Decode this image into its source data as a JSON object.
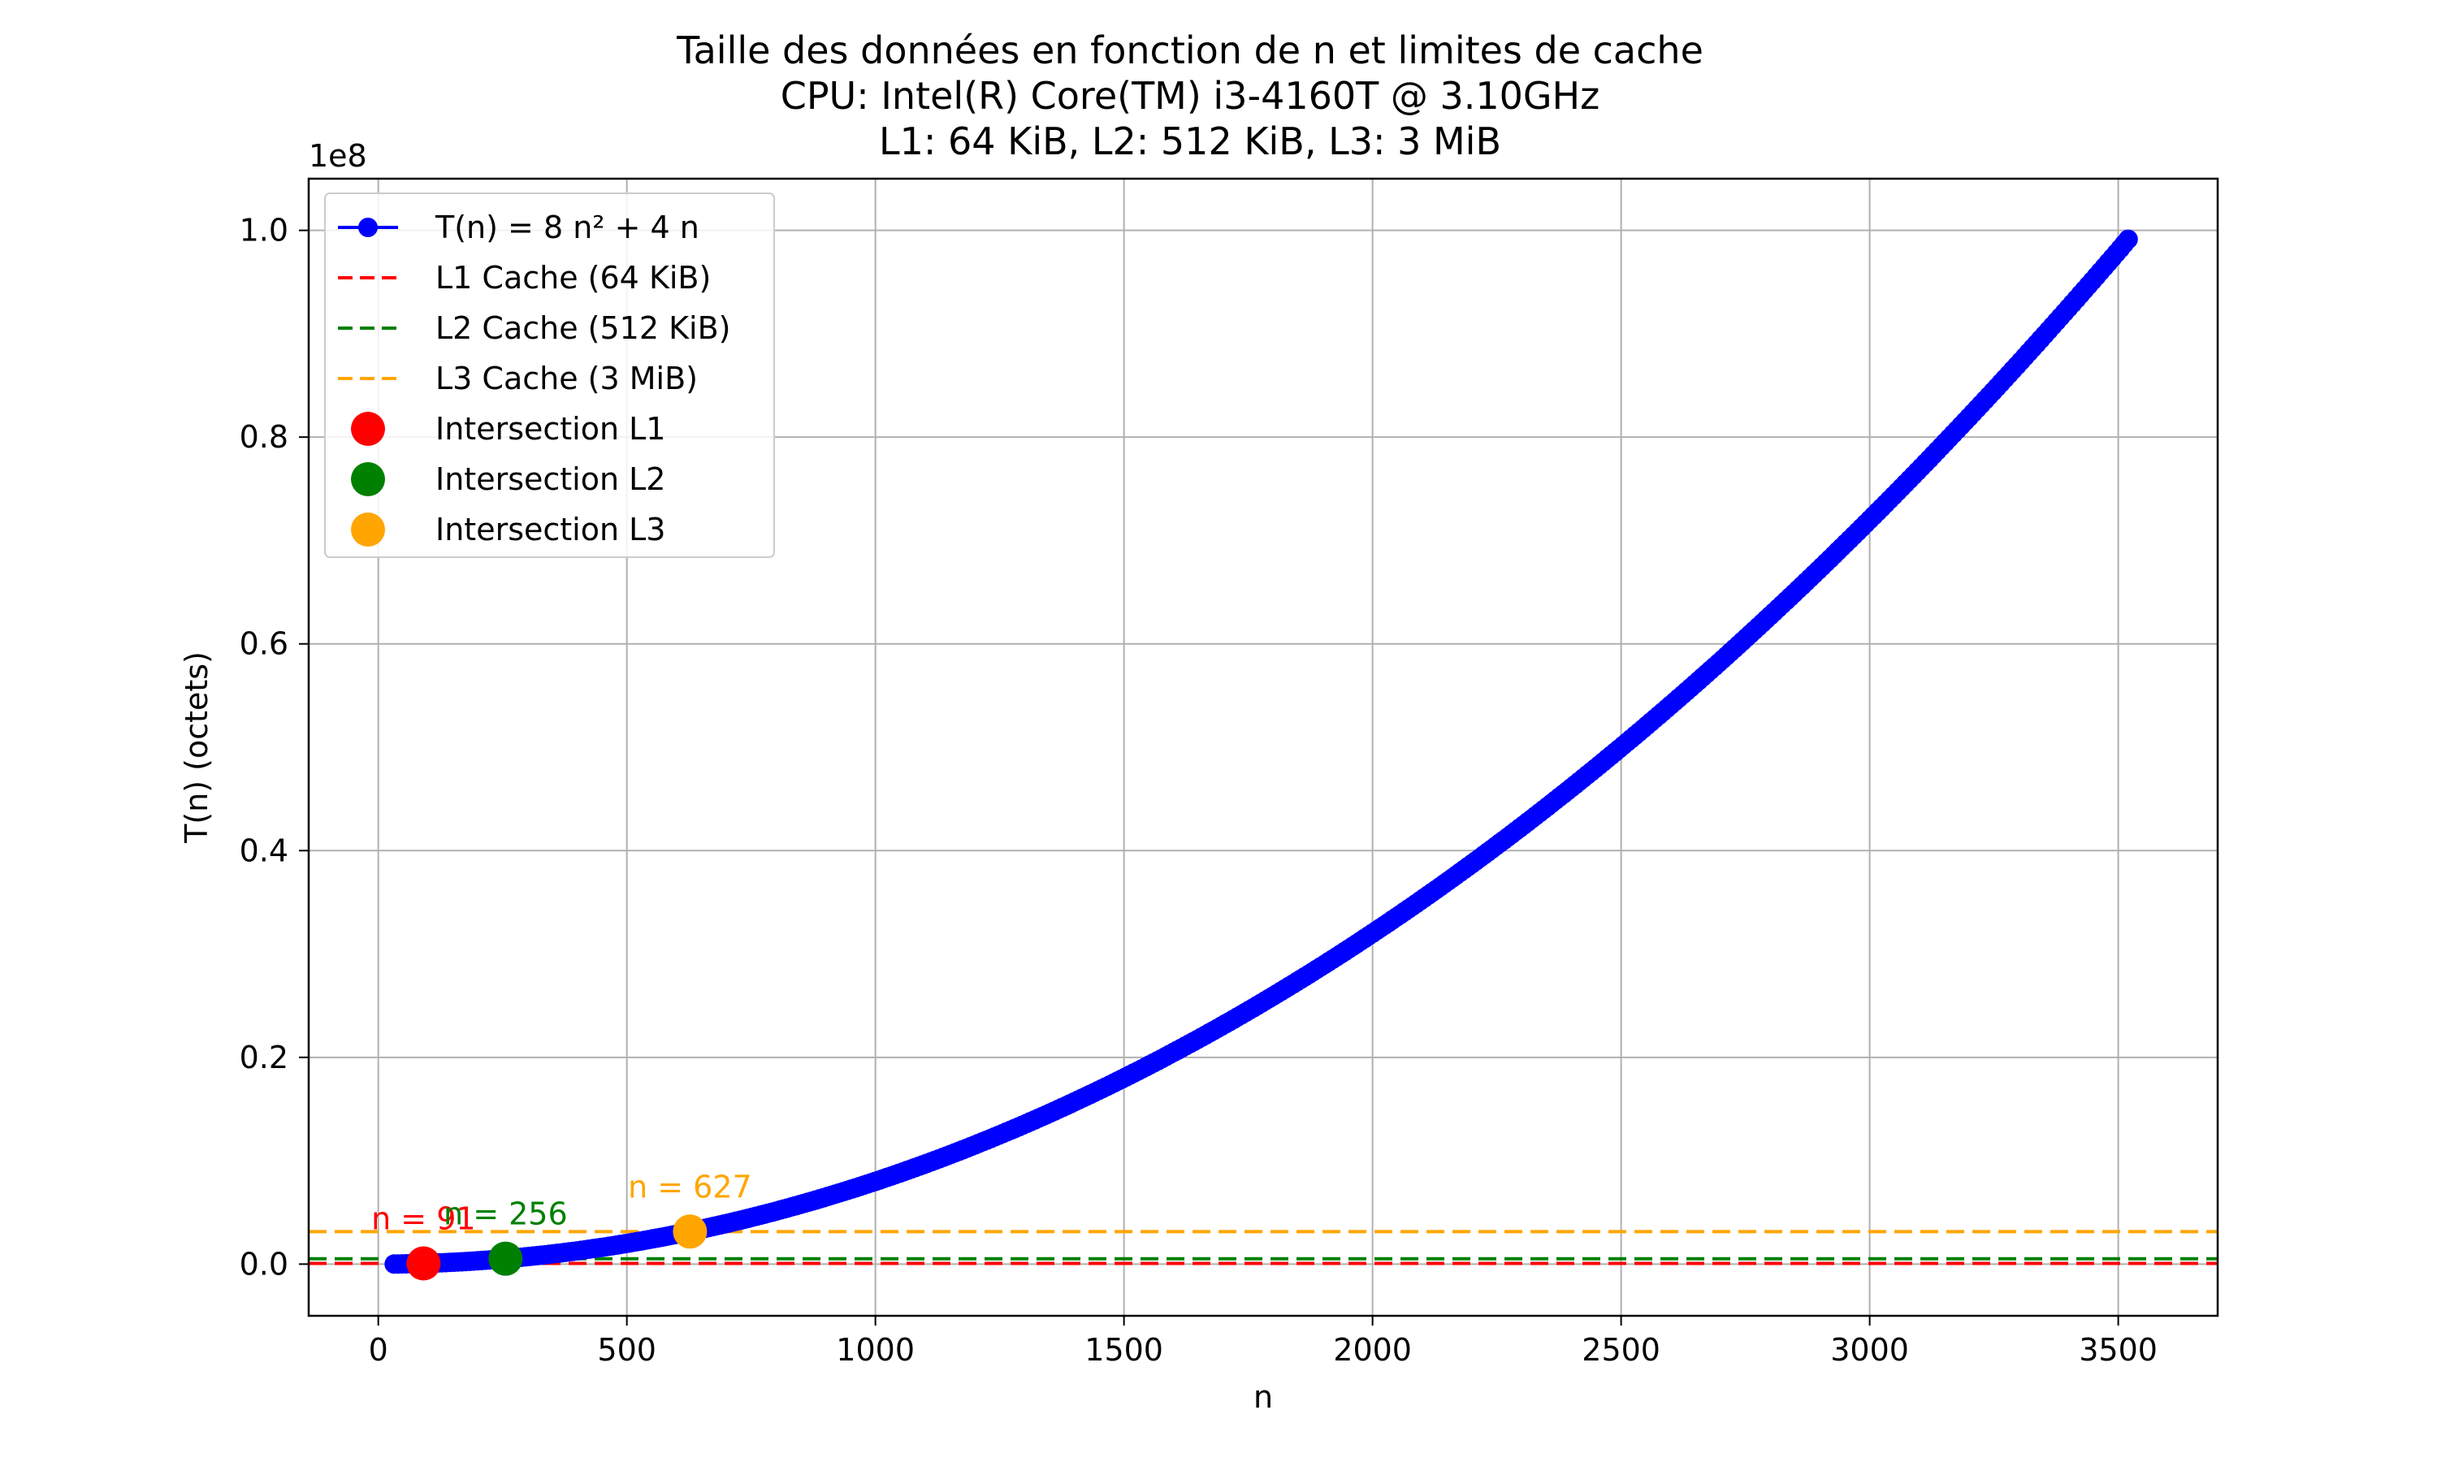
{
  "chart_data": {
    "type": "line",
    "title_lines": [
      "Taille des données en fonction de n et limites de cache",
      "CPU: Intel(R) Core(TM) i3-4160T @ 3.10GHz",
      "L1: 64 KiB, L2: 512 KiB, L3: 3 MiB"
    ],
    "xlabel": "n",
    "ylabel": "T(n) (octets)",
    "y_offset_label": "1e8",
    "xlim": [
      -140,
      3700
    ],
    "ylim": [
      -0.05,
      1.05
    ],
    "y_scale_exponent": 8,
    "grid": true,
    "legend_position": "top-left",
    "x_ticks": [
      0,
      500,
      1000,
      1500,
      2000,
      2500,
      3000,
      3500
    ],
    "y_ticks": [
      0.0,
      0.2,
      0.4,
      0.6,
      0.8,
      1.0
    ],
    "x_tick_labels": [
      "0",
      "500",
      "1000",
      "1500",
      "2000",
      "2500",
      "3000",
      "3500"
    ],
    "y_tick_labels": [
      "0.0",
      "0.2",
      "0.4",
      "0.6",
      "0.8",
      "1.0"
    ],
    "curve": {
      "coef_quadratic": 8,
      "coef_linear": 4,
      "x_start": 32,
      "x_end": 3520,
      "x_step": 8,
      "color": "#0000ff"
    },
    "cache_lines": [
      {
        "name": "L1 Cache (64 KiB)",
        "value": 65536,
        "color": "#ff0000"
      },
      {
        "name": "L2 Cache (512 KiB)",
        "value": 524288,
        "color": "#008000"
      },
      {
        "name": "L3 Cache (3 MiB)",
        "value": 3145728,
        "color": "#ffa500"
      }
    ],
    "intersections": [
      {
        "name": "Intersection L1",
        "n": 91,
        "label": "n = 91",
        "color": "#ff0000"
      },
      {
        "name": "Intersection L2",
        "n": 256,
        "label": "n = 256",
        "color": "#008000"
      },
      {
        "name": "Intersection L3",
        "n": 627,
        "label": "n = 627",
        "color": "#ffa500"
      }
    ],
    "legend": {
      "curve_label": "T(n) = 8 n² + 4 n",
      "entries": [
        "L1 Cache (64 KiB)",
        "L2 Cache (512 KiB)",
        "L3 Cache (3 MiB)",
        "Intersection L1",
        "Intersection L2",
        "Intersection L3"
      ]
    }
  }
}
